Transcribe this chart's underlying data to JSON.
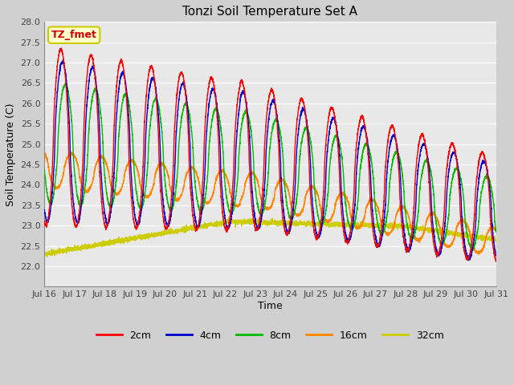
{
  "title": "Tonzi Soil Temperature Set A",
  "xlabel": "Time",
  "ylabel": "Soil Temperature (C)",
  "annotation": "TZ_fmet",
  "ylim": [
    21.5,
    28.0
  ],
  "yticks": [
    22.0,
    22.5,
    23.0,
    23.5,
    24.0,
    24.5,
    25.0,
    25.5,
    26.0,
    26.5,
    27.0,
    27.5,
    28.0
  ],
  "xtick_labels": [
    "Jul 16",
    "Jul 17",
    "Jul 18",
    "Jul 19",
    "Jul 20",
    "Jul 21",
    "Jul 22",
    "Jul 23",
    "Jul 24",
    "Jul 25",
    "Jul 26",
    "Jul 27",
    "Jul 28",
    "Jul 29",
    "Jul 30",
    "Jul 31"
  ],
  "legend_labels": [
    "2cm",
    "4cm",
    "8cm",
    "16cm",
    "32cm"
  ],
  "line_colors": [
    "#ff0000",
    "#0000cc",
    "#00bb00",
    "#ff8800",
    "#cccc00"
  ],
  "plot_bg_color": "#e8e8e8",
  "fig_bg_color": "#d0d0d0",
  "annotation_bg": "#ffffcc",
  "annotation_border": "#cccc00",
  "annotation_text_color": "#cc0000",
  "title_fontsize": 11,
  "axis_label_fontsize": 9,
  "tick_fontsize": 8,
  "legend_fontsize": 9
}
